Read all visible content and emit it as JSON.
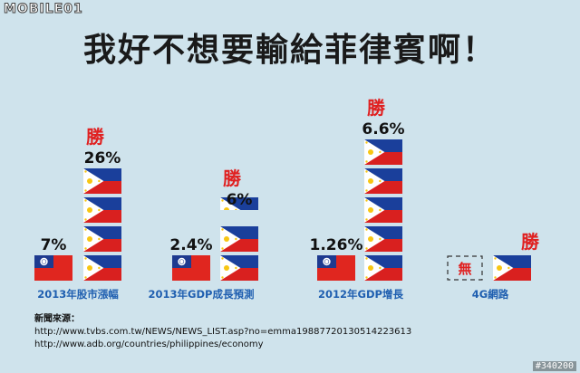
{
  "watermark": {
    "logo": "MOBILE01",
    "image_id": "#340200"
  },
  "title": "我好不想要輸給菲律賓啊！",
  "win_label": "勝",
  "none_label": "無",
  "colors": {
    "label_blue": "#1f5fb0",
    "win_red": "#e02020",
    "bg": "#cfe3ec"
  },
  "chart_data": {
    "type": "bar",
    "categories": [
      "2013年股市漲幅",
      "2013年GDP成長預測",
      "2012年GDP增長",
      "4G網路"
    ],
    "series": [
      {
        "name": "",
        "flag": "taiwan",
        "values": [
          7,
          2.4,
          1.26,
          null
        ],
        "labels": [
          "7%",
          "2.4%",
          "1.26%",
          ""
        ]
      },
      {
        "name": "",
        "flag": "philippines",
        "values": [
          26,
          6,
          6.6,
          null
        ],
        "labels": [
          "26%",
          "6%",
          "6.6%",
          ""
        ]
      }
    ],
    "pictogram_units": [
      {
        "taiwan": 1,
        "philippines": 4
      },
      {
        "taiwan": 1,
        "philippines": 2.5
      },
      {
        "taiwan": 1,
        "philippines": 5
      },
      {
        "taiwan": 0,
        "philippines": 1
      }
    ],
    "winner": [
      "philippines",
      "philippines",
      "philippines",
      "philippines"
    ],
    "taiwan_4g": "無"
  },
  "sources": {
    "heading": "新聞來源：",
    "links": [
      "http://www.tvbs.com.tw/NEWS/NEWS_LIST.asp?no=emma19887720130514223613",
      "http://www.adb.org/countries/philippines/economy"
    ]
  }
}
